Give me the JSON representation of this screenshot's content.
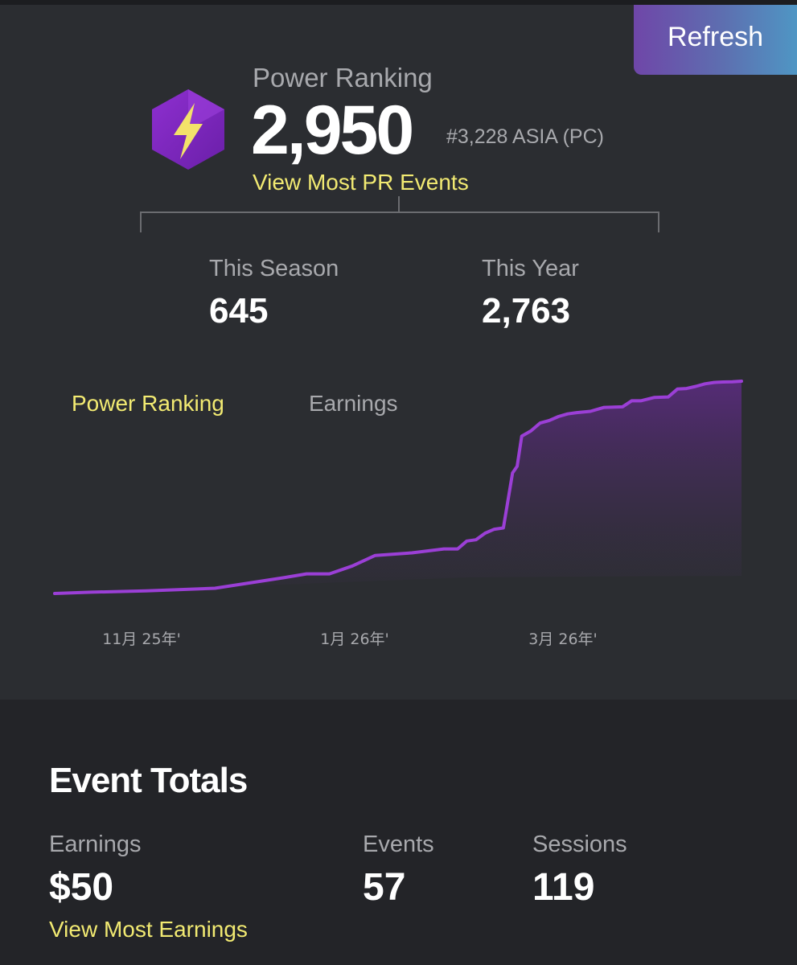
{
  "header": {
    "refresh_label": "Refresh"
  },
  "power_ranking": {
    "icon": "lightning-hexagon-icon",
    "label": "Power Ranking",
    "value": "2,950",
    "rank": "#3,228 ASIA (PC)",
    "link": "View Most PR Events"
  },
  "stats": {
    "season_label": "This Season",
    "season_value": "645",
    "year_label": "This Year",
    "year_value": "2,763"
  },
  "tabs": {
    "power_ranking": "Power Ranking",
    "earnings": "Earnings"
  },
  "colors": {
    "accent_yellow": "#f2ea72",
    "line_purple": "#9b3fd6",
    "bg": "#2b2d31",
    "bg_dark": "#232428"
  },
  "chart_data": {
    "type": "area",
    "x_ticks": [
      "11月 25年'",
      "1月 26年'",
      "3月 26年'"
    ],
    "x": [
      0,
      8,
      20,
      35,
      50,
      55,
      60,
      65,
      70,
      78,
      85,
      88,
      90,
      92,
      94,
      96,
      98,
      100,
      101,
      102,
      104,
      105,
      106,
      108,
      110,
      112,
      114,
      117,
      120,
      124,
      126,
      128,
      131,
      134,
      136,
      138,
      140,
      142,
      144,
      146,
      148,
      150
    ],
    "values": [
      2140,
      2145,
      2150,
      2160,
      2200,
      2215,
      2215,
      2245,
      2285,
      2295,
      2310,
      2310,
      2340,
      2345,
      2370,
      2385,
      2390,
      2600,
      2625,
      2740,
      2760,
      2775,
      2790,
      2800,
      2815,
      2825,
      2830,
      2835,
      2850,
      2852,
      2875,
      2875,
      2888,
      2890,
      2920,
      2922,
      2930,
      2940,
      2945,
      2947,
      2948,
      2950
    ],
    "grid": false
  },
  "totals": {
    "title": "Event Totals",
    "earnings_label": "Earnings",
    "earnings_value": "$50",
    "events_label": "Events",
    "events_value": "57",
    "sessions_label": "Sessions",
    "sessions_value": "119",
    "link": "View Most Earnings"
  }
}
